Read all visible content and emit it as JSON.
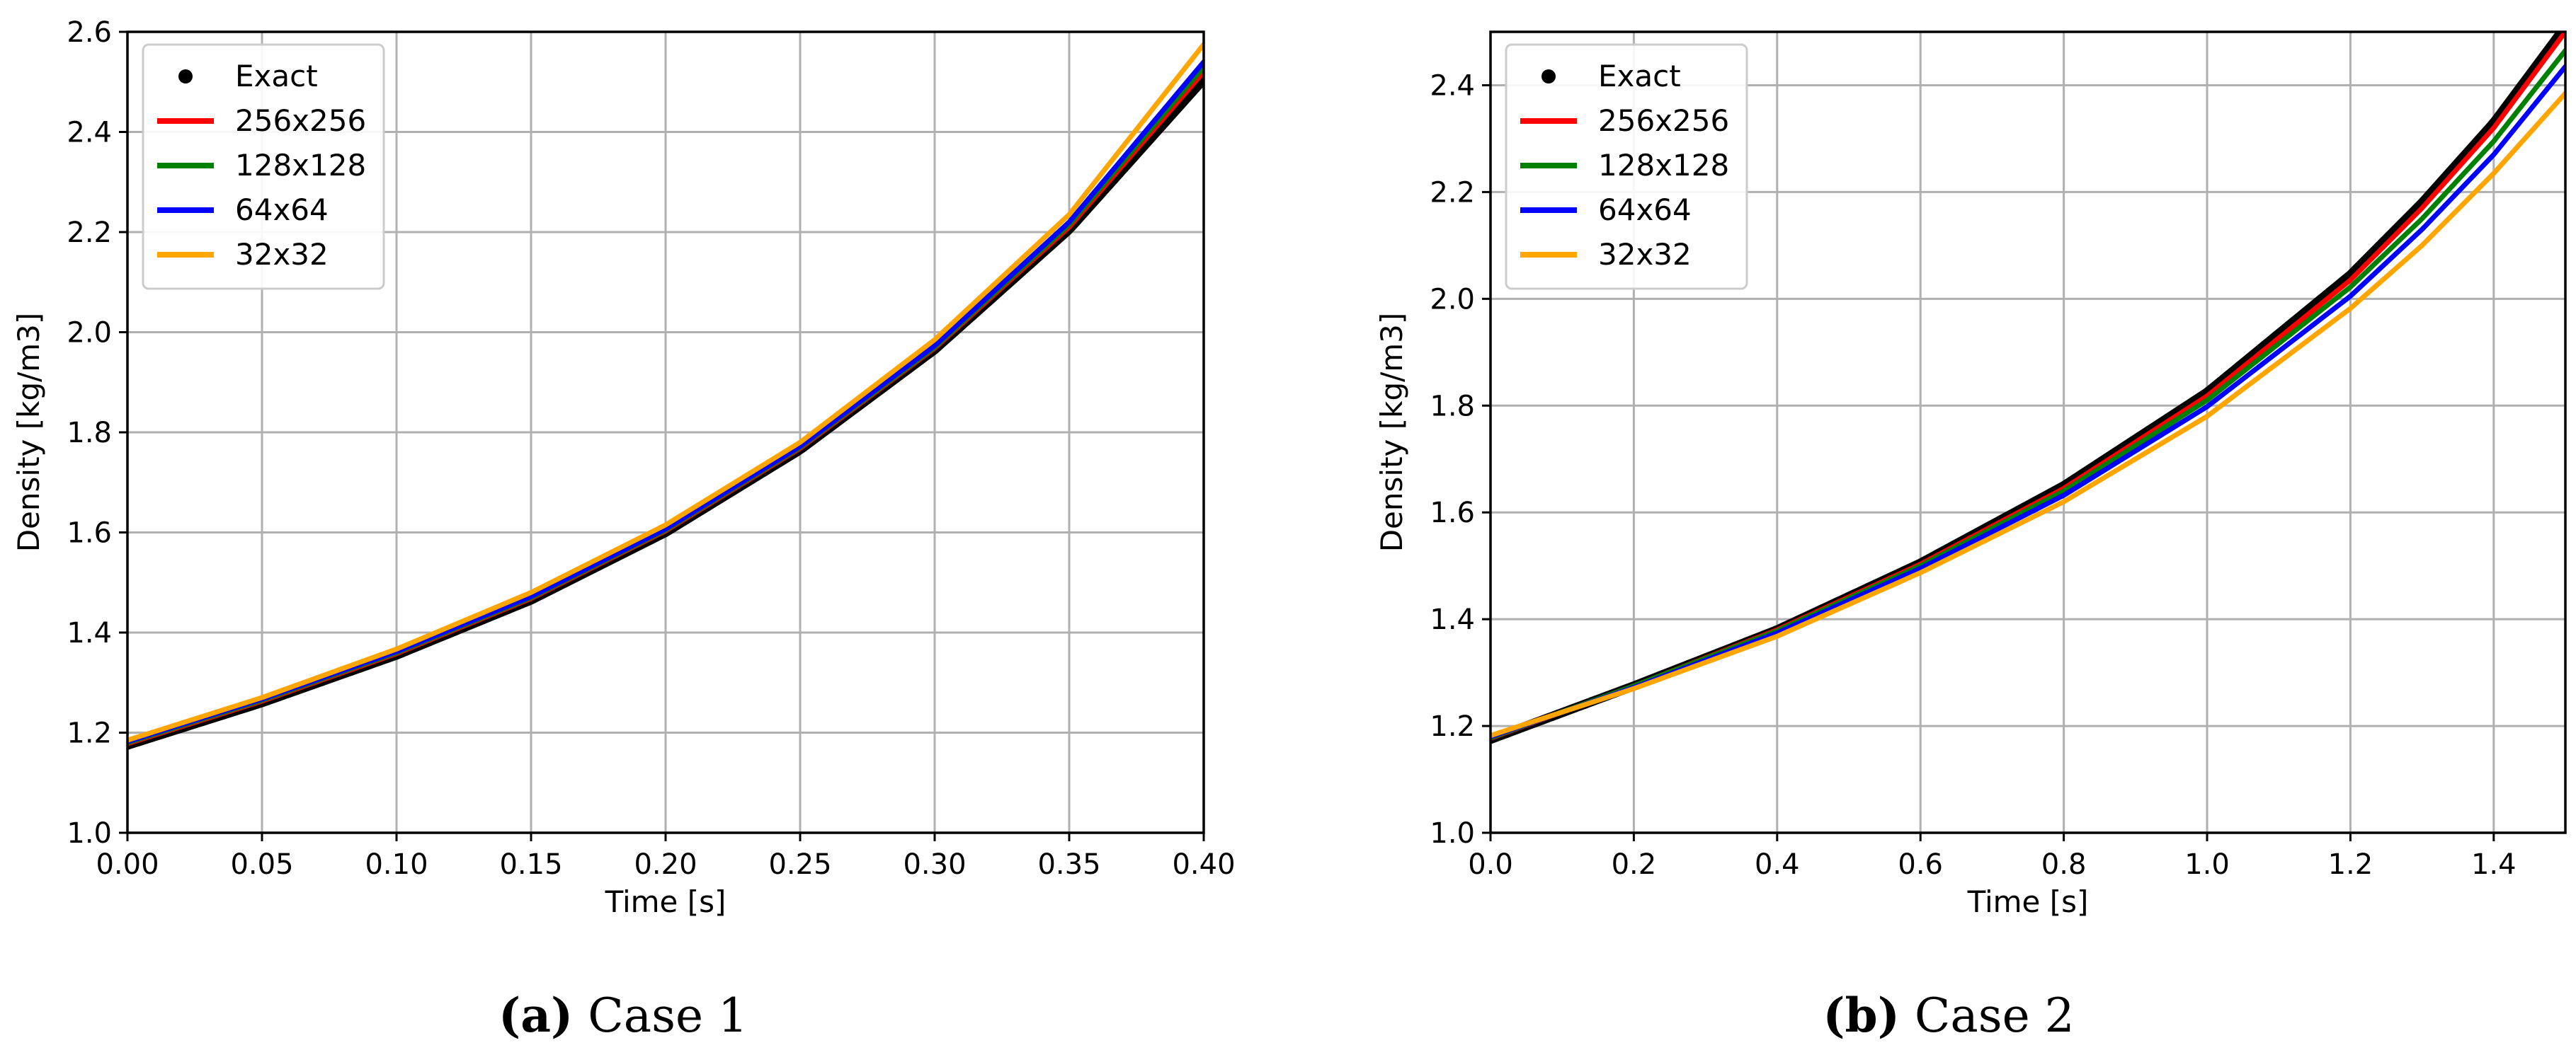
{
  "chart_data": [
    {
      "type": "line",
      "caption_label": "(a)",
      "caption_text": "Case 1",
      "xlabel": "Time [s]",
      "ylabel": "Density [kg/m3]",
      "xlim": [
        0.0,
        0.4
      ],
      "ylim": [
        1.0,
        2.6
      ],
      "xticks": [
        "0.00",
        "0.05",
        "0.10",
        "0.15",
        "0.20",
        "0.25",
        "0.30",
        "0.35",
        "0.40"
      ],
      "yticks": [
        "1.0",
        "1.2",
        "1.4",
        "1.6",
        "1.8",
        "2.0",
        "2.2",
        "2.4",
        "2.6"
      ],
      "grid": true,
      "legend_position": "top-left",
      "x": [
        0.0,
        0.05,
        0.1,
        0.15,
        0.2,
        0.25,
        0.3,
        0.35,
        0.4
      ],
      "series": [
        {
          "name": "Exact",
          "style": "dots",
          "color": "#000000",
          "values": [
            1.175,
            1.26,
            1.355,
            1.465,
            1.6,
            1.765,
            1.965,
            2.205,
            2.505
          ]
        },
        {
          "name": "256x256",
          "style": "line",
          "color": "#ff0000",
          "values": [
            1.178,
            1.263,
            1.358,
            1.468,
            1.603,
            1.768,
            1.968,
            2.21,
            2.52
          ]
        },
        {
          "name": "128x128",
          "style": "line",
          "color": "#008000",
          "values": [
            1.18,
            1.265,
            1.36,
            1.47,
            1.605,
            1.77,
            1.97,
            2.215,
            2.53
          ]
        },
        {
          "name": "64x64",
          "style": "line",
          "color": "#0000ff",
          "values": [
            1.182,
            1.267,
            1.362,
            1.472,
            1.607,
            1.772,
            1.973,
            2.22,
            2.54
          ]
        },
        {
          "name": "32x32",
          "style": "line",
          "color": "#ffa500",
          "values": [
            1.185,
            1.27,
            1.367,
            1.48,
            1.615,
            1.78,
            1.985,
            2.235,
            2.575
          ]
        }
      ]
    },
    {
      "type": "line",
      "caption_label": "(b)",
      "caption_text": "Case 2",
      "xlabel": "Time [s]",
      "ylabel": "Density [kg/m3]",
      "xlim": [
        0.0,
        1.5
      ],
      "ylim": [
        1.0,
        2.5
      ],
      "xticks": [
        "0.0",
        "0.2",
        "0.4",
        "0.6",
        "0.8",
        "1.0",
        "1.2",
        "1.4"
      ],
      "yticks": [
        "1.0",
        "1.2",
        "1.4",
        "1.6",
        "1.8",
        "2.0",
        "2.2",
        "2.4"
      ],
      "grid": true,
      "legend_position": "top-left",
      "x": [
        0.0,
        0.2,
        0.4,
        0.6,
        0.8,
        1.0,
        1.2,
        1.3,
        1.4,
        1.5
      ],
      "series": [
        {
          "name": "Exact",
          "style": "dots",
          "color": "#000000",
          "values": [
            1.175,
            1.275,
            1.38,
            1.505,
            1.65,
            1.825,
            2.045,
            2.18,
            2.33,
            2.51
          ]
        },
        {
          "name": "256x256",
          "style": "line",
          "color": "#ff0000",
          "values": [
            1.177,
            1.275,
            1.38,
            1.503,
            1.645,
            1.818,
            2.035,
            2.17,
            2.32,
            2.5
          ]
        },
        {
          "name": "128x128",
          "style": "line",
          "color": "#008000",
          "values": [
            1.178,
            1.275,
            1.378,
            1.5,
            1.64,
            1.81,
            2.022,
            2.15,
            2.295,
            2.465
          ]
        },
        {
          "name": "64x64",
          "style": "line",
          "color": "#0000ff",
          "values": [
            1.18,
            1.272,
            1.374,
            1.495,
            1.632,
            1.798,
            2.005,
            2.13,
            2.27,
            2.435
          ]
        },
        {
          "name": "32x32",
          "style": "line",
          "color": "#ffa500",
          "values": [
            1.182,
            1.27,
            1.368,
            1.487,
            1.62,
            1.78,
            1.982,
            2.1,
            2.235,
            2.385
          ]
        }
      ]
    }
  ]
}
